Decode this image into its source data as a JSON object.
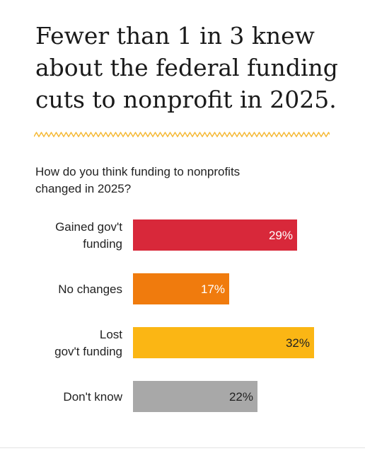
{
  "headline": "Fewer than 1 in 3 knew\nabout the federal funding\ncuts to nonprofit in 2025.",
  "question": "How do you think funding to nonprofits\nchanged in 2025?",
  "colors": {
    "divider": "#f5b72f",
    "label_text": "#222222",
    "value_text_light": "#ffffff",
    "value_text_dark": "#222222"
  },
  "chart_data": {
    "type": "bar",
    "orientation": "horizontal",
    "categories": [
      "Gained gov't\nfunding",
      "No changes",
      "Lost\ngov't funding",
      "Don't know"
    ],
    "values": [
      29,
      17,
      32,
      22
    ],
    "value_labels": [
      "29%",
      "17%",
      "32%",
      "22%"
    ],
    "colors": [
      "#d8283a",
      "#f07b0d",
      "#fbb614",
      "#a8a8a8"
    ],
    "label_colors": [
      "#ffffff",
      "#ffffff",
      "#222222",
      "#222222"
    ],
    "unit": "%",
    "xlim": [
      0,
      40
    ],
    "grid": false,
    "title": "",
    "xlabel": "",
    "ylabel": ""
  }
}
